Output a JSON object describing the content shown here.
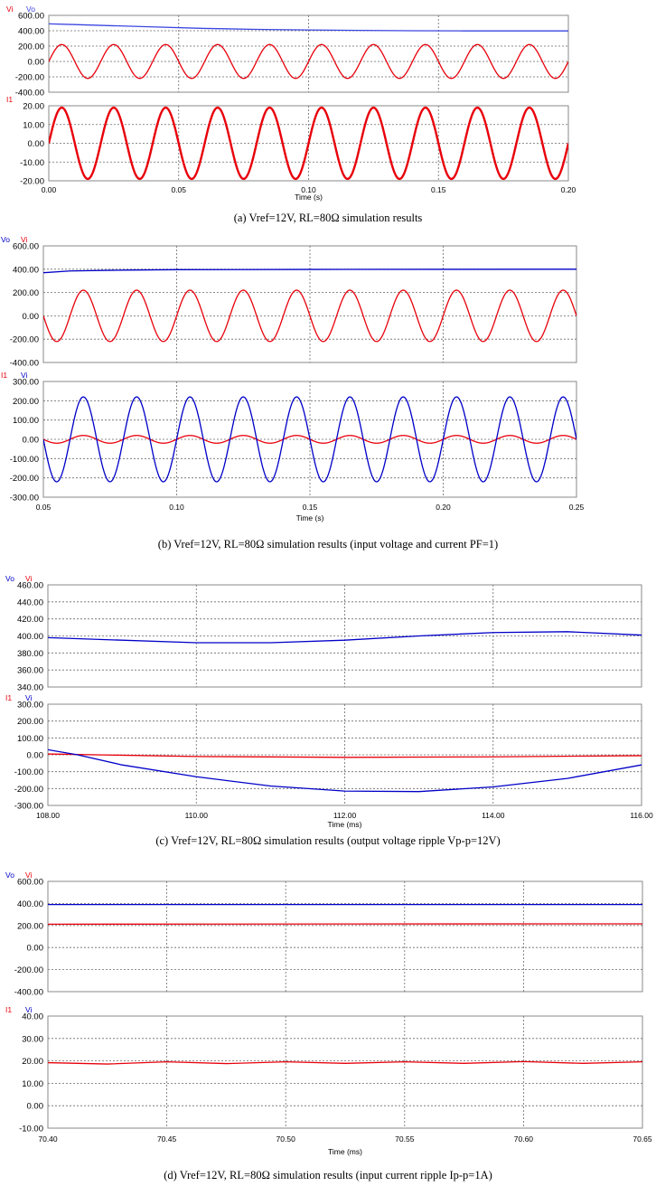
{
  "figures": [
    {
      "id": "a",
      "caption": "(a) Vref=12V, RL=80Ω simulation results",
      "xlabel": "Time (s)",
      "xlim": [
        0,
        0.2
      ],
      "xticks": [
        "0.00",
        "0.05",
        "0.10",
        "0.15",
        "0.20"
      ],
      "panels": [
        {
          "ylim": [
            -400,
            600
          ],
          "yticks": [
            "600.00",
            "400.00",
            "200.00",
            "0.00",
            "-200.00",
            "-400.00"
          ],
          "legend": [
            {
              "label": "Vi",
              "color": "#e8000b"
            },
            {
              "label": "Vo",
              "color": "#3b46e0"
            }
          ]
        },
        {
          "ylim": [
            -20,
            20
          ],
          "yticks": [
            "20.00",
            "10.00",
            "0.00",
            "-10.00",
            "-20.00"
          ],
          "legend": [
            {
              "label": "I1",
              "color": "#e8000b"
            }
          ]
        }
      ]
    },
    {
      "id": "b",
      "caption": "(b) Vref=12V, RL=80Ω simulation results (input voltage and current PF=1)",
      "xlabel": "Time (s)",
      "xlim": [
        0.05,
        0.25
      ],
      "xticks": [
        "0.05",
        "0.10",
        "0.15",
        "0.20",
        "0.25"
      ],
      "panels": [
        {
          "ylim": [
            -400,
            600
          ],
          "yticks": [
            "600.00",
            "400.00",
            "200.00",
            "0.00",
            "-200.00",
            "-400.00"
          ],
          "legend": [
            {
              "label": "Vo",
              "color": "#0000c8"
            },
            {
              "label": "Vi",
              "color": "#e8000b"
            }
          ]
        },
        {
          "ylim": [
            -300,
            300
          ],
          "yticks": [
            "300.00",
            "200.00",
            "100.00",
            "0.00",
            "-100.00",
            "-200.00",
            "-300.00"
          ],
          "legend": [
            {
              "label": "I1",
              "color": "#e8000b"
            },
            {
              "label": "Vi",
              "color": "#0000c8"
            }
          ]
        }
      ]
    },
    {
      "id": "c",
      "caption": "(c) Vref=12V, RL=80Ω simulation results (output voltage ripple Vp-p=12V)",
      "xlabel": "Time (ms)",
      "xlim": [
        108,
        116
      ],
      "xticks": [
        "108.00",
        "110.00",
        "112.00",
        "114.00",
        "116.00"
      ],
      "panels": [
        {
          "ylim": [
            340,
            460
          ],
          "yticks": [
            "460.00",
            "440.00",
            "420.00",
            "400.00",
            "380.00",
            "360.00",
            "340.00"
          ],
          "legend": [
            {
              "label": "Vo",
              "color": "#0000c8"
            },
            {
              "label": "Vi",
              "color": "#e8000b"
            }
          ]
        },
        {
          "ylim": [
            -300,
            300
          ],
          "yticks": [
            "300.00",
            "200.00",
            "100.00",
            "0.00",
            "-100.00",
            "-200.00",
            "-300.00"
          ],
          "legend": [
            {
              "label": "I1",
              "color": "#e8000b"
            },
            {
              "label": "Vi",
              "color": "#0000c8"
            }
          ]
        }
      ]
    },
    {
      "id": "d",
      "caption": "(d) Vref=12V, RL=80Ω simulation results (input current ripple Ip-p=1A)",
      "xlabel": "Time (ms)",
      "xlim": [
        70.4,
        70.65
      ],
      "xticks": [
        "70.40",
        "70.45",
        "70.50",
        "70.55",
        "70.60",
        "70.65"
      ],
      "panels": [
        {
          "ylim": [
            -400,
            600
          ],
          "yticks": [
            "600.00",
            "400.00",
            "200.00",
            "0.00",
            "-200.00",
            "-400.00"
          ],
          "legend": [
            {
              "label": "Vo",
              "color": "#0000c8"
            },
            {
              "label": "Vi",
              "color": "#e8000b"
            }
          ]
        },
        {
          "ylim": [
            -10,
            40
          ],
          "yticks": [
            "40.00",
            "30.00",
            "20.00",
            "10.00",
            "0.00",
            "-10.00"
          ],
          "legend": [
            {
              "label": "I1",
              "color": "#e8000b"
            },
            {
              "label": "Vi",
              "color": "#0000c8"
            }
          ]
        }
      ]
    }
  ],
  "chart_data": [
    {
      "type": "line",
      "title": "(a) Vref=12V, RL=80Ω simulation results",
      "xlabel": "Time (s)",
      "xlim": [
        0,
        0.2
      ],
      "series": [
        {
          "name": "Vi",
          "panel": 0,
          "color": "#e8000b",
          "waveform": "sine",
          "amplitude": 220,
          "offset": 0,
          "frequency_hz": 50,
          "phase_deg": 0
        },
        {
          "name": "Vo",
          "panel": 0,
          "color": "#3b46e0",
          "x": [
            0,
            0.01,
            0.02,
            0.04,
            0.06,
            0.08,
            0.1,
            0.12,
            0.14,
            0.16,
            0.18,
            0.2
          ],
          "y": [
            490,
            480,
            470,
            450,
            430,
            418,
            410,
            404,
            400,
            398,
            398,
            398
          ]
        },
        {
          "name": "I1",
          "panel": 1,
          "color": "#e8000b",
          "waveform": "sine",
          "amplitude": 19,
          "offset": 0,
          "frequency_hz": 50,
          "phase_deg": 0
        }
      ]
    },
    {
      "type": "line",
      "title": "(b) Vref=12V, RL=80Ω simulation results (input voltage and current PF=1)",
      "xlabel": "Time (s)",
      "xlim": [
        0.05,
        0.25
      ],
      "series": [
        {
          "name": "Vo",
          "panel": 0,
          "color": "#0000c8",
          "x": [
            0.05,
            0.06,
            0.08,
            0.1,
            0.15,
            0.2,
            0.25
          ],
          "y": [
            370,
            385,
            392,
            396,
            398,
            399,
            400
          ]
        },
        {
          "name": "Vi",
          "panel": 0,
          "color": "#e8000b",
          "waveform": "sine",
          "amplitude": 220,
          "offset": 0,
          "frequency_hz": 50,
          "phase_deg": 0
        },
        {
          "name": "I1",
          "panel": 1,
          "color": "#e8000b",
          "waveform": "sine",
          "amplitude": 20,
          "offset": 0,
          "frequency_hz": 50,
          "phase_deg": 0
        },
        {
          "name": "Vi",
          "panel": 1,
          "color": "#0000c8",
          "waveform": "sine",
          "amplitude": 220,
          "offset": 0,
          "frequency_hz": 50,
          "phase_deg": 0
        }
      ]
    },
    {
      "type": "line",
      "title": "(c) Vref=12V, RL=80Ω simulation results (output voltage ripple Vp-p=12V)",
      "xlabel": "Time (ms)",
      "xlim": [
        108,
        116
      ],
      "series": [
        {
          "name": "Vo",
          "panel": 0,
          "color": "#0000c8",
          "x": [
            108,
            109,
            110,
            111,
            112,
            113,
            114,
            115,
            116
          ],
          "y": [
            398,
            395,
            392,
            392,
            395,
            400,
            404,
            405,
            401
          ]
        },
        {
          "name": "Vi",
          "panel": 0,
          "color": "#e8000b",
          "x": [],
          "y": []
        },
        {
          "name": "I1",
          "panel": 1,
          "color": "#e8000b",
          "x": [
            108,
            110,
            112,
            114,
            116
          ],
          "y": [
            5,
            -10,
            -15,
            -12,
            -5
          ]
        },
        {
          "name": "Vi",
          "panel": 1,
          "color": "#0000c8",
          "x": [
            108,
            108.4,
            109,
            110,
            111,
            112,
            113,
            114,
            115,
            116
          ],
          "y": [
            30,
            0,
            -60,
            -130,
            -185,
            -215,
            -218,
            -190,
            -140,
            -60
          ]
        }
      ]
    },
    {
      "type": "line",
      "title": "(d) Vref=12V, RL=80Ω simulation results (input current ripple Ip-p=1A)",
      "xlabel": "Time (ms)",
      "xlim": [
        70.4,
        70.65
      ],
      "series": [
        {
          "name": "Vo",
          "panel": 0,
          "color": "#0000c8",
          "x": [
            70.4,
            70.65
          ],
          "y": [
            390,
            390
          ]
        },
        {
          "name": "Vi",
          "panel": 0,
          "color": "#e8000b",
          "x": [
            70.4,
            70.65
          ],
          "y": [
            212,
            215
          ]
        },
        {
          "name": "I1",
          "panel": 1,
          "color": "#e8000b",
          "x": [
            70.4,
            70.425,
            70.45,
            70.475,
            70.5,
            70.525,
            70.55,
            70.575,
            70.6,
            70.625,
            70.65
          ],
          "y": [
            19.2,
            18.6,
            19.6,
            18.8,
            19.6,
            18.9,
            19.6,
            18.9,
            19.7,
            18.9,
            19.6
          ]
        },
        {
          "name": "Vi",
          "panel": 1,
          "color": "#0000c8",
          "x": [],
          "y": []
        }
      ]
    }
  ]
}
